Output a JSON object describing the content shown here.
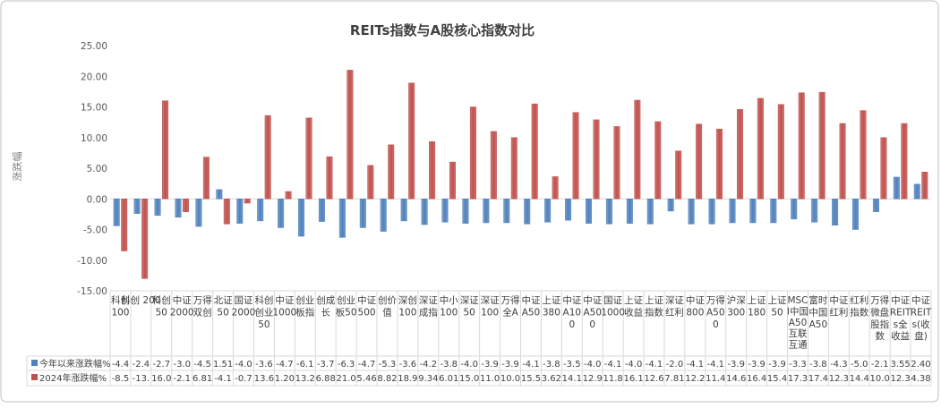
{
  "chart_data": {
    "type": "bar",
    "title": "REITs指数与A股核心指数对比",
    "ylabel": "涨跌幅",
    "ylim": [
      -15,
      25
    ],
    "yticks": [
      "25.00",
      "20.00",
      "15.00",
      "10.00",
      "5.00",
      "0.00",
      "-5.00",
      "-10.00",
      "-15.00"
    ],
    "grid": false,
    "legend": "table-bottom-left",
    "categories": [
      [
        "科创",
        "100"
      ],
      [
        "科创 200"
      ],
      [
        "科创",
        "50"
      ],
      [
        "中证",
        "2000"
      ],
      [
        "万得",
        "双创"
      ],
      [
        "北证",
        "50"
      ],
      [
        "国证",
        "2000"
      ],
      [
        "科创",
        "创业",
        "50"
      ],
      [
        "中证",
        "1000"
      ],
      [
        "创业",
        "板指"
      ],
      [
        "创成",
        "长"
      ],
      [
        "创业",
        "板50"
      ],
      [
        "中证",
        "500"
      ],
      [
        "创价",
        "值"
      ],
      [
        "深创",
        "100"
      ],
      [
        "深证",
        "成指"
      ],
      [
        "中小",
        "100"
      ],
      [
        "深证",
        "50"
      ],
      [
        "深证",
        "100"
      ],
      [
        "万得",
        "全A"
      ],
      [
        "中证",
        "A50"
      ],
      [
        "上证",
        "380"
      ],
      [
        "中证",
        "A10",
        "0"
      ],
      [
        "中证",
        "A50",
        "0"
      ],
      [
        "国证",
        "1000"
      ],
      [
        "上证",
        "收益"
      ],
      [
        "上证",
        "指数"
      ],
      [
        "深证",
        "红利"
      ],
      [
        "中证",
        "800"
      ],
      [
        "万得",
        "A50",
        "0"
      ],
      [
        "沪深",
        "300"
      ],
      [
        "上证",
        "180"
      ],
      [
        "上证",
        "50"
      ],
      [
        "MSC",
        "I中国",
        "A50",
        "互联",
        "互通"
      ],
      [
        "富时",
        "中国",
        "A50"
      ],
      [
        "中证",
        "红利"
      ],
      [
        "红利",
        "指数"
      ],
      [
        "万得",
        "微盘",
        "股指",
        "数"
      ],
      [
        "中证",
        "REIT",
        "s全",
        "收益"
      ],
      [
        "中证",
        "REIT",
        "s(收",
        "盘)"
      ]
    ],
    "series": [
      {
        "name": "今年以来涨跌幅%",
        "color": "#4f81bd",
        "values": [
          -4.4,
          -2.4,
          -2.7,
          -3.0,
          -4.5,
          1.51,
          -4.0,
          -3.6,
          -4.7,
          -6.1,
          -3.7,
          -6.3,
          -4.7,
          -5.3,
          -3.6,
          -4.2,
          -3.8,
          -4.0,
          -3.9,
          -3.9,
          -4.1,
          -3.8,
          -3.5,
          -4.0,
          -4.1,
          -4.0,
          -4.1,
          -2.0,
          -4.1,
          -4.1,
          -3.9,
          -3.9,
          -3.9,
          -3.3,
          -3.8,
          -4.3,
          -5.0,
          -2.1,
          3.55,
          2.4
        ],
        "labels": [
          "-4.4",
          "-2.4",
          "-2.7",
          "-3.0",
          "-4.5",
          "1.51",
          "-4.0",
          "-3.6",
          "-4.7",
          "-6.1",
          "-3.7",
          "-6.3",
          "-4.7",
          "-5.3",
          "-3.6",
          "-4.2",
          "-3.8",
          "-4.0",
          "-3.9",
          "-3.9",
          "-4.1",
          "-3.8",
          "-3.5",
          "-4.0",
          "-4.1",
          "-4.0",
          "-4.1",
          "-2.0",
          "-4.1",
          "-4.1",
          "-3.9",
          "-3.9",
          "-3.9",
          "-3.3",
          "-3.8",
          "-4.3",
          "-5.0",
          "-2.1",
          "3.55",
          "2.40"
        ]
      },
      {
        "name": "2024年涨跌幅%",
        "color": "#c0504d",
        "values": [
          -8.5,
          -13.0,
          16.0,
          -2.1,
          6.81,
          -4.1,
          -0.7,
          13.6,
          1.2,
          13.2,
          6.88,
          21.0,
          5.46,
          8.82,
          18.9,
          9.34,
          6.01,
          15.0,
          11.0,
          10.0,
          15.5,
          3.62,
          14.1,
          12.9,
          11.8,
          16.1,
          12.6,
          7.81,
          12.2,
          11.4,
          14.6,
          16.4,
          15.4,
          17.3,
          17.4,
          12.3,
          14.4,
          10.0,
          12.3,
          4.38
        ],
        "labels": [
          "-8.5",
          "-13.",
          "16.0",
          "-2.1",
          "6.81",
          "-4.1",
          "-0.7",
          "13.6",
          "1.20",
          "13.2",
          "6.88",
          "21.0",
          "5.46",
          "8.82",
          "18.9",
          "9.34",
          "6.01",
          "15.0",
          "11.0",
          "10.0",
          "15.5",
          "3.62",
          "14.1",
          "12.9",
          "11.8",
          "16.1",
          "12.6",
          "7.81",
          "12.2",
          "11.4",
          "14.6",
          "16.4",
          "15.4",
          "17.3",
          "17.4",
          "12.3",
          "14.4",
          "10.0",
          "12.3",
          "4.38"
        ]
      }
    ]
  }
}
